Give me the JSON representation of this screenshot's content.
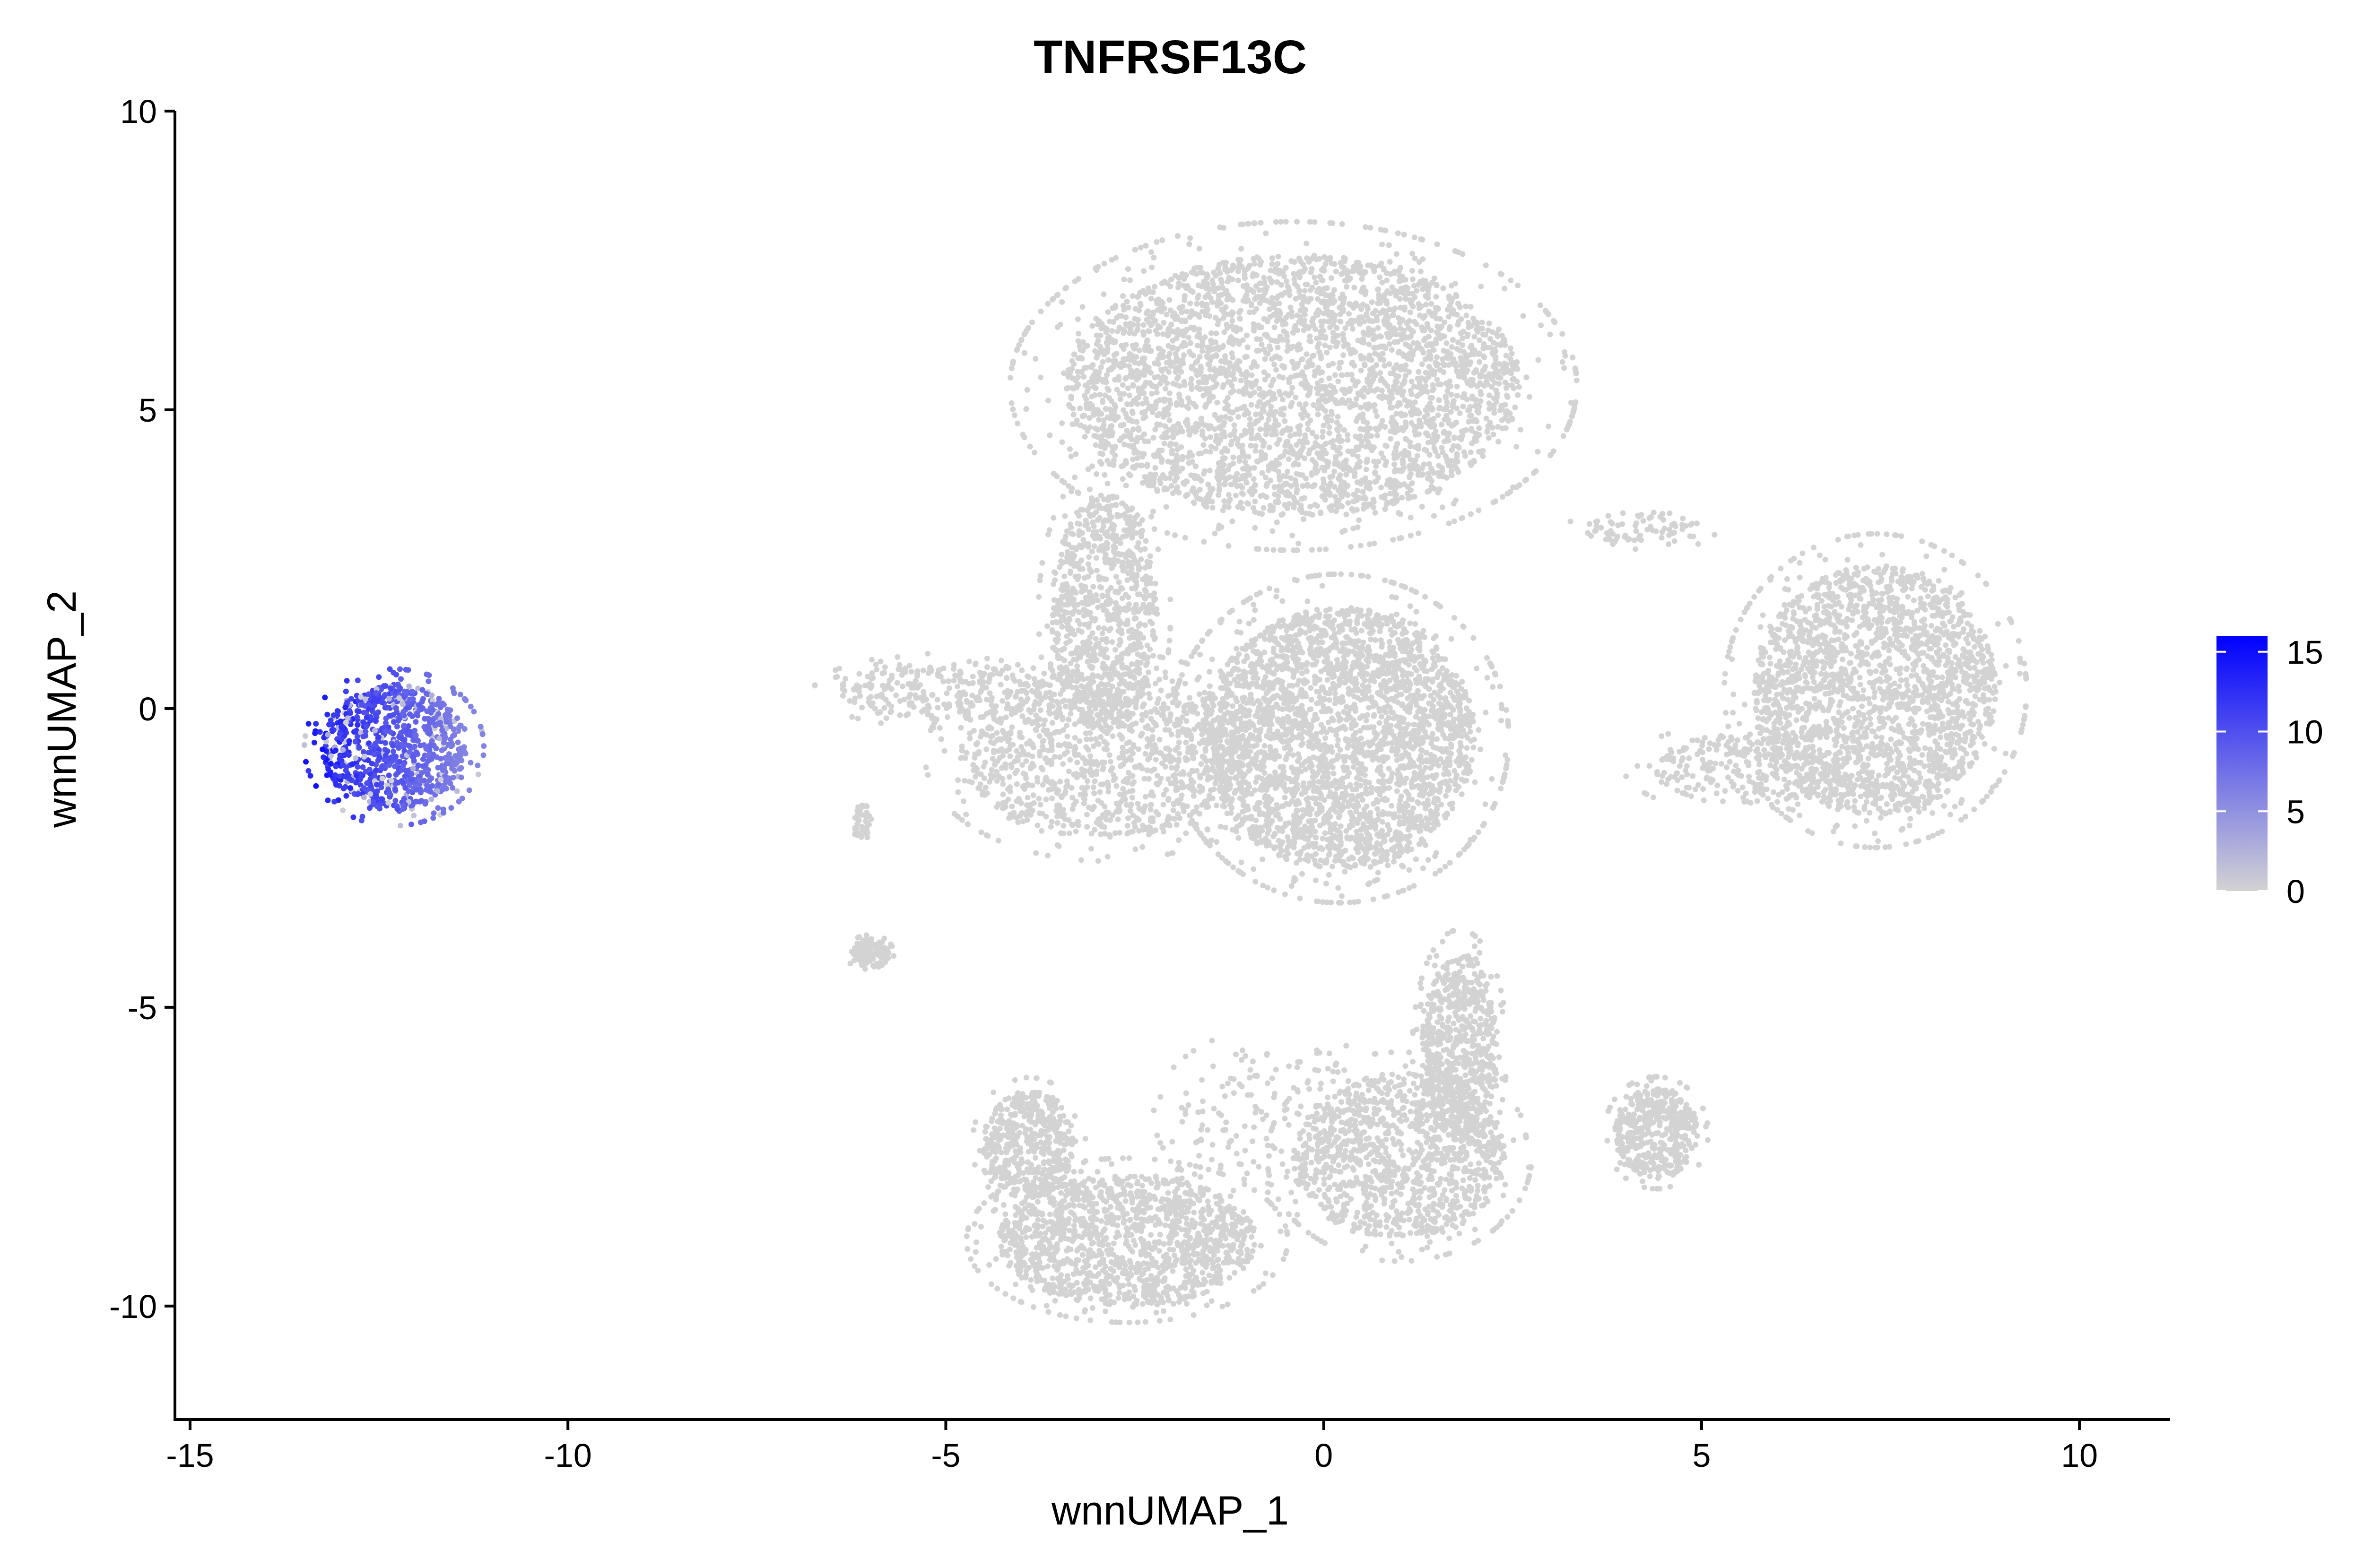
{
  "chart_data": {
    "type": "scatter",
    "title": "TNFRSF13C",
    "xlabel": "wnnUMAP_1",
    "ylabel": "wnnUMAP_2",
    "xlim": [
      -15.2,
      11.2
    ],
    "ylim": [
      -11.9,
      10.0
    ],
    "x_ticks": [
      -15,
      -10,
      -5,
      0,
      5,
      10
    ],
    "x_tick_labels": [
      "-15",
      "-10",
      "-5",
      "0",
      "5",
      "10"
    ],
    "y_ticks": [
      -10,
      -5,
      0,
      5,
      10
    ],
    "y_tick_labels": [
      "-10",
      "-5",
      "0",
      "5",
      "10"
    ],
    "grid": false,
    "color_scale": {
      "low_color": "#d3d3d3",
      "high_color": "#0000ff",
      "min": 0,
      "max": 16,
      "ticks": [
        0,
        5,
        10,
        15
      ],
      "tick_labels": [
        "0",
        "5",
        "10",
        "15"
      ],
      "legend_position": "right"
    },
    "clusters": [
      {
        "region": "left-high-expression",
        "cx": -12.3,
        "cy": -0.65,
        "rx": 0.95,
        "ry": 1.05,
        "count": 900,
        "expression": [
          6,
          15
        ]
      },
      {
        "region": "top-main-lobe",
        "cx": -0.4,
        "cy": 5.4,
        "rx": 3.0,
        "ry": 2.2,
        "count": 4500,
        "expression": [
          0,
          0
        ]
      },
      {
        "region": "left-arm",
        "cx": -2.9,
        "cy": 1.6,
        "rx": 0.7,
        "ry": 2.0,
        "count": 900,
        "expression": [
          0,
          0
        ]
      },
      {
        "region": "center-mid",
        "cx": 0.2,
        "cy": -0.5,
        "rx": 1.8,
        "ry": 2.2,
        "count": 3000,
        "expression": [
          0,
          0
        ]
      },
      {
        "region": "left-mid-sparse",
        "cx": -2.9,
        "cy": -0.8,
        "rx": 1.9,
        "ry": 1.4,
        "count": 1100,
        "expression": [
          0,
          0
        ]
      },
      {
        "region": "tail-left",
        "cx": -5.0,
        "cy": 0.3,
        "rx": 1.4,
        "ry": 0.5,
        "count": 300,
        "expression": [
          0,
          0
        ]
      },
      {
        "region": "small-island",
        "cx": -6.0,
        "cy": -4.1,
        "rx": 0.25,
        "ry": 0.25,
        "count": 130,
        "expression": [
          0,
          0
        ]
      },
      {
        "region": "small-strip",
        "cx": -6.1,
        "cy": -1.9,
        "rx": 0.12,
        "ry": 0.3,
        "count": 40,
        "expression": [
          0,
          0
        ]
      },
      {
        "region": "right-arc",
        "cx": 7.3,
        "cy": 0.3,
        "rx": 1.6,
        "ry": 2.1,
        "count": 2200,
        "expression": [
          0,
          0
        ]
      },
      {
        "region": "right-bridge",
        "cx": 5.6,
        "cy": -1.0,
        "rx": 1.3,
        "ry": 0.6,
        "count": 280,
        "expression": [
          0,
          0
        ]
      },
      {
        "region": "upper-bridge-streak",
        "cx": 4.2,
        "cy": 3.0,
        "rx": 0.8,
        "ry": 0.3,
        "count": 80,
        "expression": [
          0,
          0
        ]
      },
      {
        "region": "bottom-left-ring",
        "cx": -2.6,
        "cy": -8.9,
        "rx": 1.7,
        "ry": 1.1,
        "count": 1400,
        "expression": [
          0,
          0
        ]
      },
      {
        "region": "bottom-left-ring-upper",
        "cx": -3.9,
        "cy": -7.3,
        "rx": 0.6,
        "ry": 0.9,
        "count": 500,
        "expression": [
          0,
          0
        ]
      },
      {
        "region": "bottom-center",
        "cx": 1.0,
        "cy": -7.5,
        "rx": 1.4,
        "ry": 1.4,
        "count": 1100,
        "expression": [
          0,
          0
        ]
      },
      {
        "region": "bottom-right-vertical",
        "cx": 1.8,
        "cy": -5.7,
        "rx": 0.5,
        "ry": 1.6,
        "count": 700,
        "expression": [
          0,
          0
        ]
      },
      {
        "region": "bottom-right-blob",
        "cx": 4.4,
        "cy": -7.1,
        "rx": 0.55,
        "ry": 0.75,
        "count": 450,
        "expression": [
          0,
          0
        ]
      },
      {
        "region": "bottom-sparse",
        "cx": -0.5,
        "cy": -6.8,
        "rx": 1.4,
        "ry": 1.2,
        "count": 200,
        "expression": [
          0,
          0
        ]
      }
    ]
  }
}
